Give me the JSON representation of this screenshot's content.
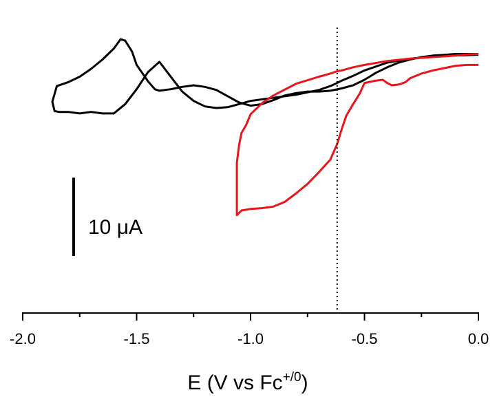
{
  "chart_data": {
    "type": "line",
    "title": "",
    "xlabel_main": "E (V vs Fc",
    "xlabel_sup": "+/0",
    "xlabel_close": ")",
    "ylabel": "",
    "xlim": [
      -2.0,
      0.0
    ],
    "ylim": [
      -34,
      6
    ],
    "x_ticks": [
      -2.0,
      -1.5,
      -1.0,
      -0.5,
      0.0
    ],
    "x_tick_labels": [
      "-2.0",
      "-1.5",
      "-1.0",
      "-0.5",
      "0.0"
    ],
    "grid": false,
    "legend": "none",
    "scale_bar": {
      "label": "10 μA",
      "value": 10
    },
    "reference_line": {
      "x": -0.62,
      "style": "dotted"
    },
    "series": [
      {
        "color": "#000000",
        "x": [
          0.0,
          -0.1,
          -0.2,
          -0.3,
          -0.4,
          -0.5,
          -0.55,
          -0.6,
          -0.62,
          -0.65,
          -0.7,
          -0.8,
          -0.9,
          -1.0,
          -1.05,
          -1.1,
          -1.15,
          -1.2,
          -1.25,
          -1.3,
          -1.35,
          -1.4,
          -1.45,
          -1.5,
          -1.55,
          -1.6,
          -1.65,
          -1.7,
          -1.75,
          -1.8,
          -1.84,
          -1.86,
          -1.87,
          -1.86,
          -1.85,
          -1.8,
          -1.75,
          -1.7,
          -1.65,
          -1.6,
          -1.57,
          -1.55,
          -1.52,
          -1.5,
          -1.45,
          -1.42,
          -1.4,
          -1.35,
          -1.3,
          -1.25,
          -1.2,
          -1.15,
          -1.1,
          -1.05,
          -1.0,
          -0.95,
          -0.9,
          -0.85,
          -0.8,
          -0.75,
          -0.7,
          -0.65,
          -0.6,
          -0.55,
          -0.5,
          -0.45,
          -0.4,
          -0.35,
          -0.3,
          -0.25,
          -0.2,
          -0.1,
          -0.05,
          0.0
        ],
        "y": [
          -1.0,
          -1.1,
          -1.2,
          -1.5,
          -2.0,
          -3.0,
          -3.7,
          -4.3,
          -4.6,
          -5.0,
          -5.5,
          -6.1,
          -6.5,
          -6.9,
          -7.3,
          -7.7,
          -7.8,
          -7.6,
          -6.9,
          -5.7,
          -3.8,
          -1.9,
          -3.2,
          -5.4,
          -7.3,
          -8.5,
          -8.5,
          -8.3,
          -8.5,
          -8.3,
          -8.3,
          -8.2,
          -7.0,
          -6.0,
          -5.0,
          -4.5,
          -3.8,
          -2.8,
          -1.6,
          -0.2,
          1.0,
          0.8,
          -0.6,
          -2.3,
          -4.4,
          -5.4,
          -5.6,
          -5.4,
          -5.1,
          -4.9,
          -5.1,
          -5.5,
          -6.3,
          -7.1,
          -7.5,
          -7.3,
          -6.8,
          -6.2,
          -5.9,
          -5.7,
          -5.7,
          -5.6,
          -5.3,
          -4.9,
          -4.2,
          -3.3,
          -2.6,
          -2.0,
          -1.6,
          -1.3,
          -1.1,
          -0.9,
          -0.9,
          -0.9
        ]
      },
      {
        "color": "#e8151b",
        "x": [
          0.0,
          -0.05,
          -0.1,
          -0.2,
          -0.3,
          -0.4,
          -0.5,
          -0.55,
          -0.6,
          -0.62,
          -0.65,
          -0.7,
          -0.8,
          -0.9,
          -0.95,
          -1.0,
          -1.02,
          -1.04,
          -1.05,
          -1.06,
          -1.06,
          -1.04,
          -1.0,
          -0.95,
          -0.9,
          -0.85,
          -0.8,
          -0.75,
          -0.7,
          -0.65,
          -0.62,
          -0.6,
          -0.58,
          -0.55,
          -0.52,
          -0.5,
          -0.45,
          -0.42,
          -0.4,
          -0.38,
          -0.35,
          -0.32,
          -0.3,
          -0.25,
          -0.2,
          -0.15,
          -0.1,
          -0.05,
          0.0
        ],
        "y": [
          -0.9,
          -0.95,
          -1.1,
          -1.3,
          -1.5,
          -1.8,
          -2.3,
          -2.6,
          -3.0,
          -3.1,
          -3.4,
          -3.8,
          -4.7,
          -6.2,
          -7.2,
          -8.6,
          -10.0,
          -11.0,
          -12.5,
          -14.8,
          -21.5,
          -20.9,
          -20.7,
          -20.6,
          -20.4,
          -19.8,
          -18.7,
          -17.5,
          -16.0,
          -14.4,
          -12.4,
          -10.5,
          -8.8,
          -7.3,
          -5.9,
          -4.6,
          -4.3,
          -4.2,
          -4.6,
          -4.9,
          -4.8,
          -4.5,
          -4.0,
          -3.4,
          -3.0,
          -2.7,
          -2.4,
          -2.3,
          -2.3
        ]
      }
    ]
  }
}
